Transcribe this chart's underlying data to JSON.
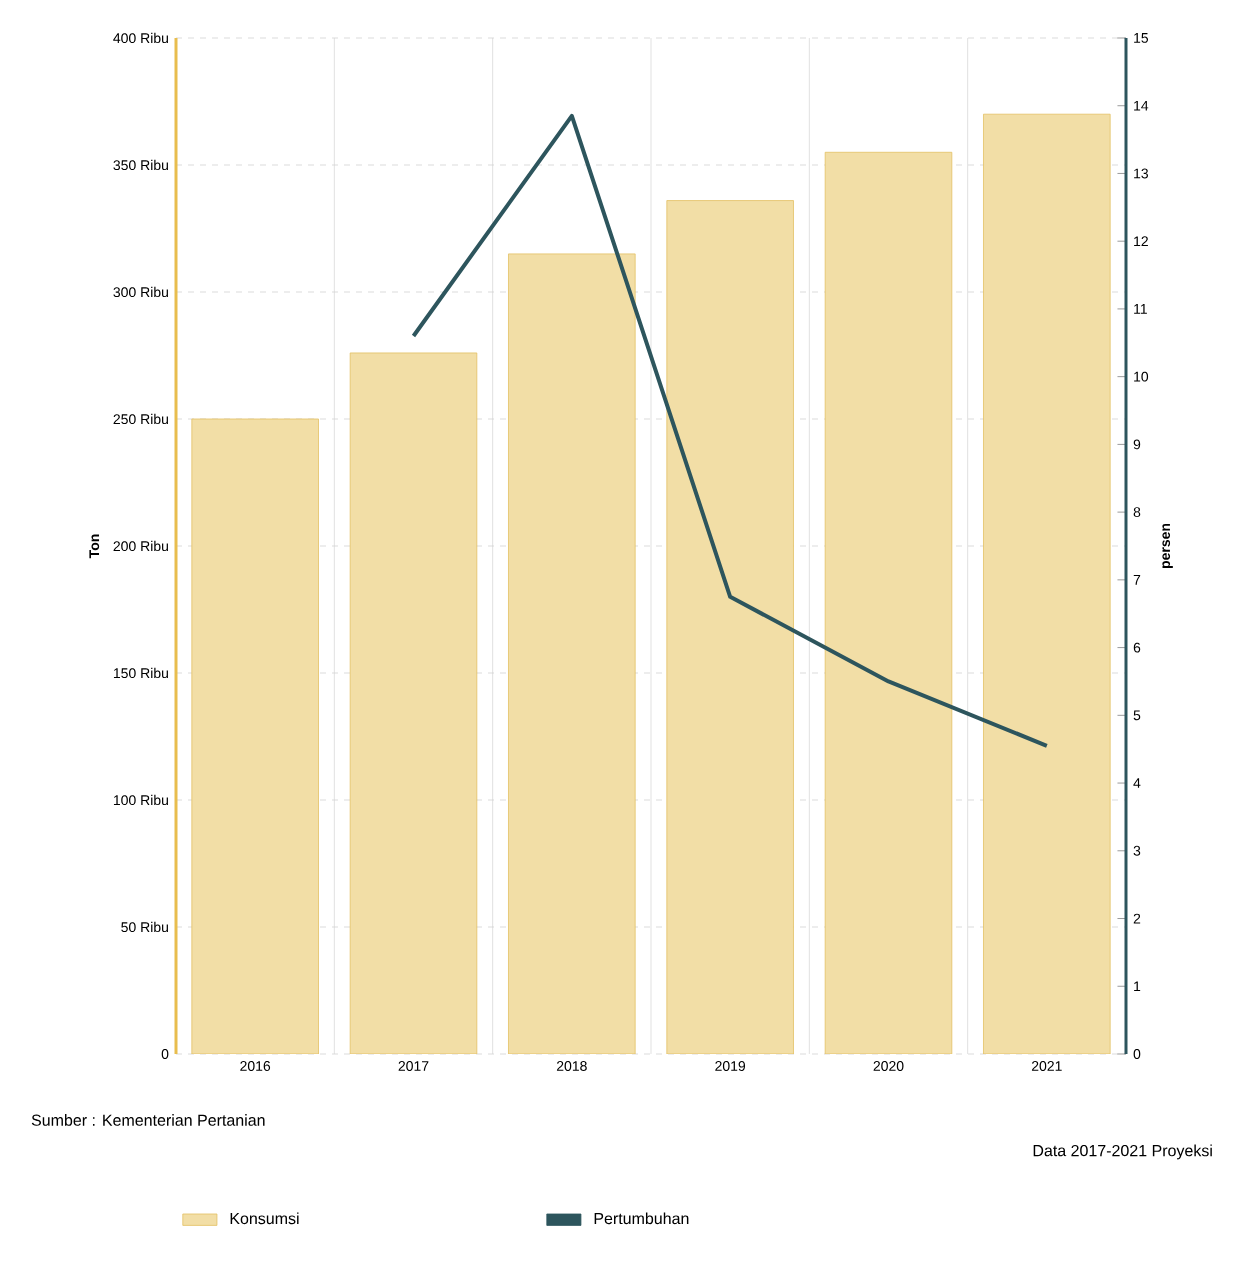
{
  "chart_data": {
    "type": "bar",
    "categories": [
      "2016",
      "2017",
      "2018",
      "2019",
      "2020",
      "2021"
    ],
    "series": [
      {
        "name": "Konsumsi",
        "color": "#f2dea6",
        "values": [
          250,
          276,
          315,
          336,
          355,
          370
        ]
      },
      {
        "name": "Pertumbuhan",
        "type": "line",
        "axis": "y2",
        "color": "#2d555d",
        "values": [
          null,
          10.6,
          13.85,
          6.75,
          5.5,
          4.55
        ]
      }
    ],
    "ylabel": "Ton",
    "y2label": "persen",
    "ylim": [
      0,
      400
    ],
    "yticks": [
      0,
      {
        "value": 50,
        "label": "50 Ribu"
      },
      {
        "value": 100,
        "label": "100 Ribu"
      },
      {
        "value": 150,
        "label": "150 Ribu"
      },
      {
        "value": 200,
        "label": "200 Ribu"
      },
      {
        "value": 250,
        "label": "250 Ribu"
      },
      {
        "value": 300,
        "label": "300 Ribu"
      },
      {
        "value": 350,
        "label": "350 Ribu"
      },
      {
        "value": 400,
        "label": "400 Ribu"
      }
    ],
    "y2lim": [
      0,
      15
    ],
    "y2ticks": [
      0,
      1,
      2,
      3,
      4,
      5,
      6,
      7,
      8,
      9,
      10,
      11,
      12,
      13,
      14,
      15
    ],
    "grid": true,
    "legend": "bottom",
    "annotations": [
      "Sumber : Kementerian Pertanian",
      "Data 2017-2021 Proyeksi"
    ]
  }
}
